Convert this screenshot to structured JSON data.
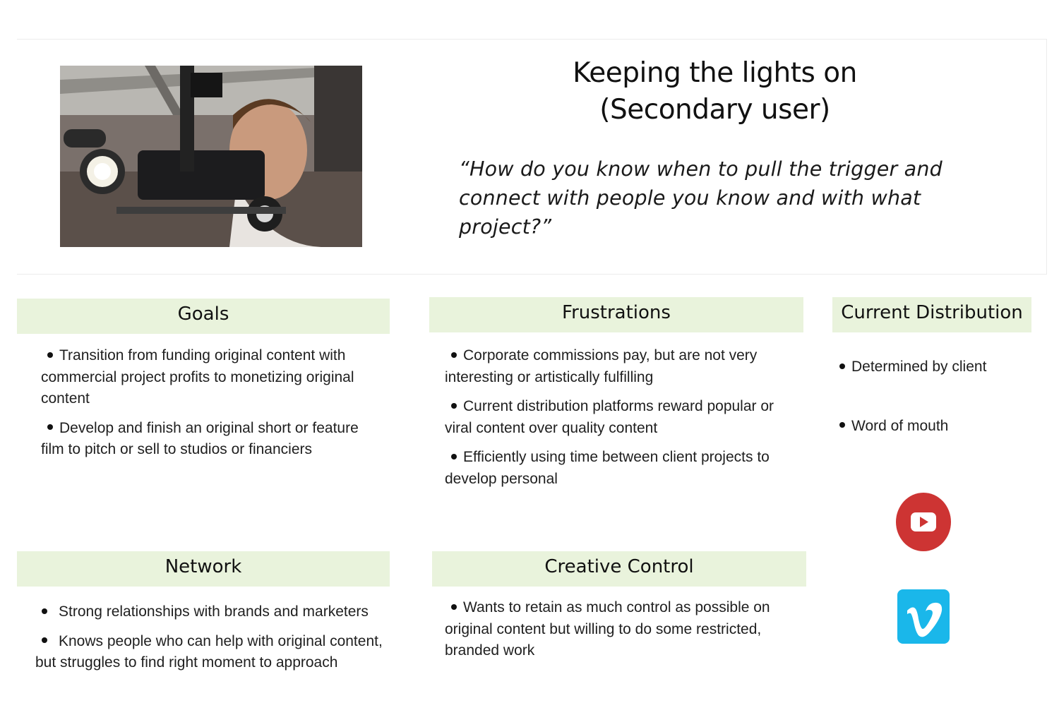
{
  "header": {
    "title_line1": "Keeping the lights on",
    "title_line2": "(Secondary user)",
    "quote": "“How do you know when to pull the trigger and connect with people you know and with what project?”"
  },
  "sections": {
    "goals": {
      "title": "Goals",
      "items": [
        "Transition from funding original content with commercial project profits to monetizing original content",
        "Develop and finish an original short or feature film to pitch or sell to studios or financiers"
      ]
    },
    "frustrations": {
      "title": "Frustrations",
      "items": [
        "Corporate commissions pay, but are not very interesting or artistically fulfilling",
        "Current distribution platforms reward popular or viral content over quality content",
        "Efficiently using time between client projects to develop personal"
      ]
    },
    "distribution": {
      "title": "Current Distribution",
      "items": [
        "Determined by client",
        "Word of mouth"
      ]
    },
    "network": {
      "title": "Network",
      "items": [
        "Strong relationships with brands and marketers",
        "Knows people who can help with original content, but struggles to find right moment to approach"
      ]
    },
    "creative": {
      "title": "Creative Control",
      "items": [
        "Wants to retain as much control as possible on original content but willing to do some restricted, branded work"
      ]
    }
  },
  "icons": {
    "photo": "camera-operator-photo",
    "platform1": "youtube-icon",
    "platform2": "vimeo-icon"
  },
  "colors": {
    "section_header_bg": "#e9f3dc",
    "youtube_red": "#cd3433",
    "vimeo_blue": "#1ab7ea"
  }
}
